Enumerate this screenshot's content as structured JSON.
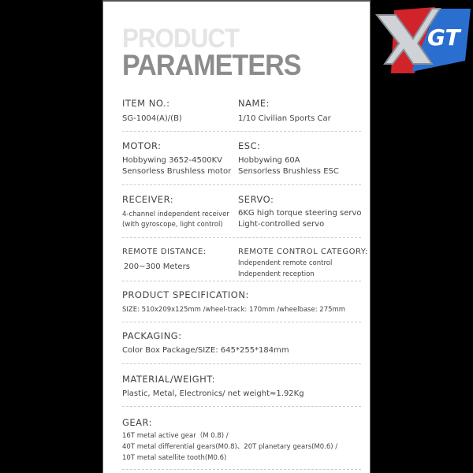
{
  "title": {
    "line1": "PRODUCT",
    "line2": "PARAMETERS"
  },
  "logo": {
    "text": "XGT",
    "colors": {
      "red": "#d0242a",
      "blue": "#2a6fd0"
    }
  },
  "specs": {
    "item_no": {
      "label": "ITEM NO.:",
      "value": "SG-1004(A)/(B)"
    },
    "name": {
      "label": "NAME:",
      "value": "1/10 Civilian Sports Car"
    },
    "motor": {
      "label": "MOTOR:",
      "lines": [
        "Hobbywing 3652-4500KV",
        "Sensorless Brushless motor"
      ]
    },
    "esc": {
      "label": "ESC:",
      "lines": [
        "Hobbywing 60A",
        "Sensorless Brushless ESC"
      ]
    },
    "receiver": {
      "label": "RECEIVER:",
      "lines": [
        "4-channel independent receiver",
        "(with gyroscope, light control)"
      ]
    },
    "servo": {
      "label": "SERVO:",
      "lines": [
        "6KG high torque steering servo",
        "Light-controlled servo"
      ]
    },
    "remote_distance": {
      "label": "REMOTE DISTANCE:",
      "value": "200~300 Meters"
    },
    "remote_category": {
      "label": "REMOTE CONTROL CATEGORY:",
      "lines": [
        "Independent remote control",
        "Independent reception"
      ]
    },
    "specification": {
      "label": "PRODUCT SPECIFICATION:",
      "value": "SIZE: 510x209x125mm /wheel-track: 170mm /wheelbase: 275mm"
    },
    "packaging": {
      "label": "PACKAGING:",
      "value": "Color Box Package/SIZE: 645*255*184mm"
    },
    "material": {
      "label": "MATERIAL/WEIGHT:",
      "value": "Plastic, Metal, Electronics/ net weight≈1.92Kg"
    },
    "gear": {
      "label": "GEAR:",
      "lines": [
        "16T metal active gear（M 0.8) /",
        "40T metal differential gears(M0.8)、20T planetary gears(M0.6) /",
        "10T metal satellite tooth(M0.6)"
      ]
    }
  }
}
